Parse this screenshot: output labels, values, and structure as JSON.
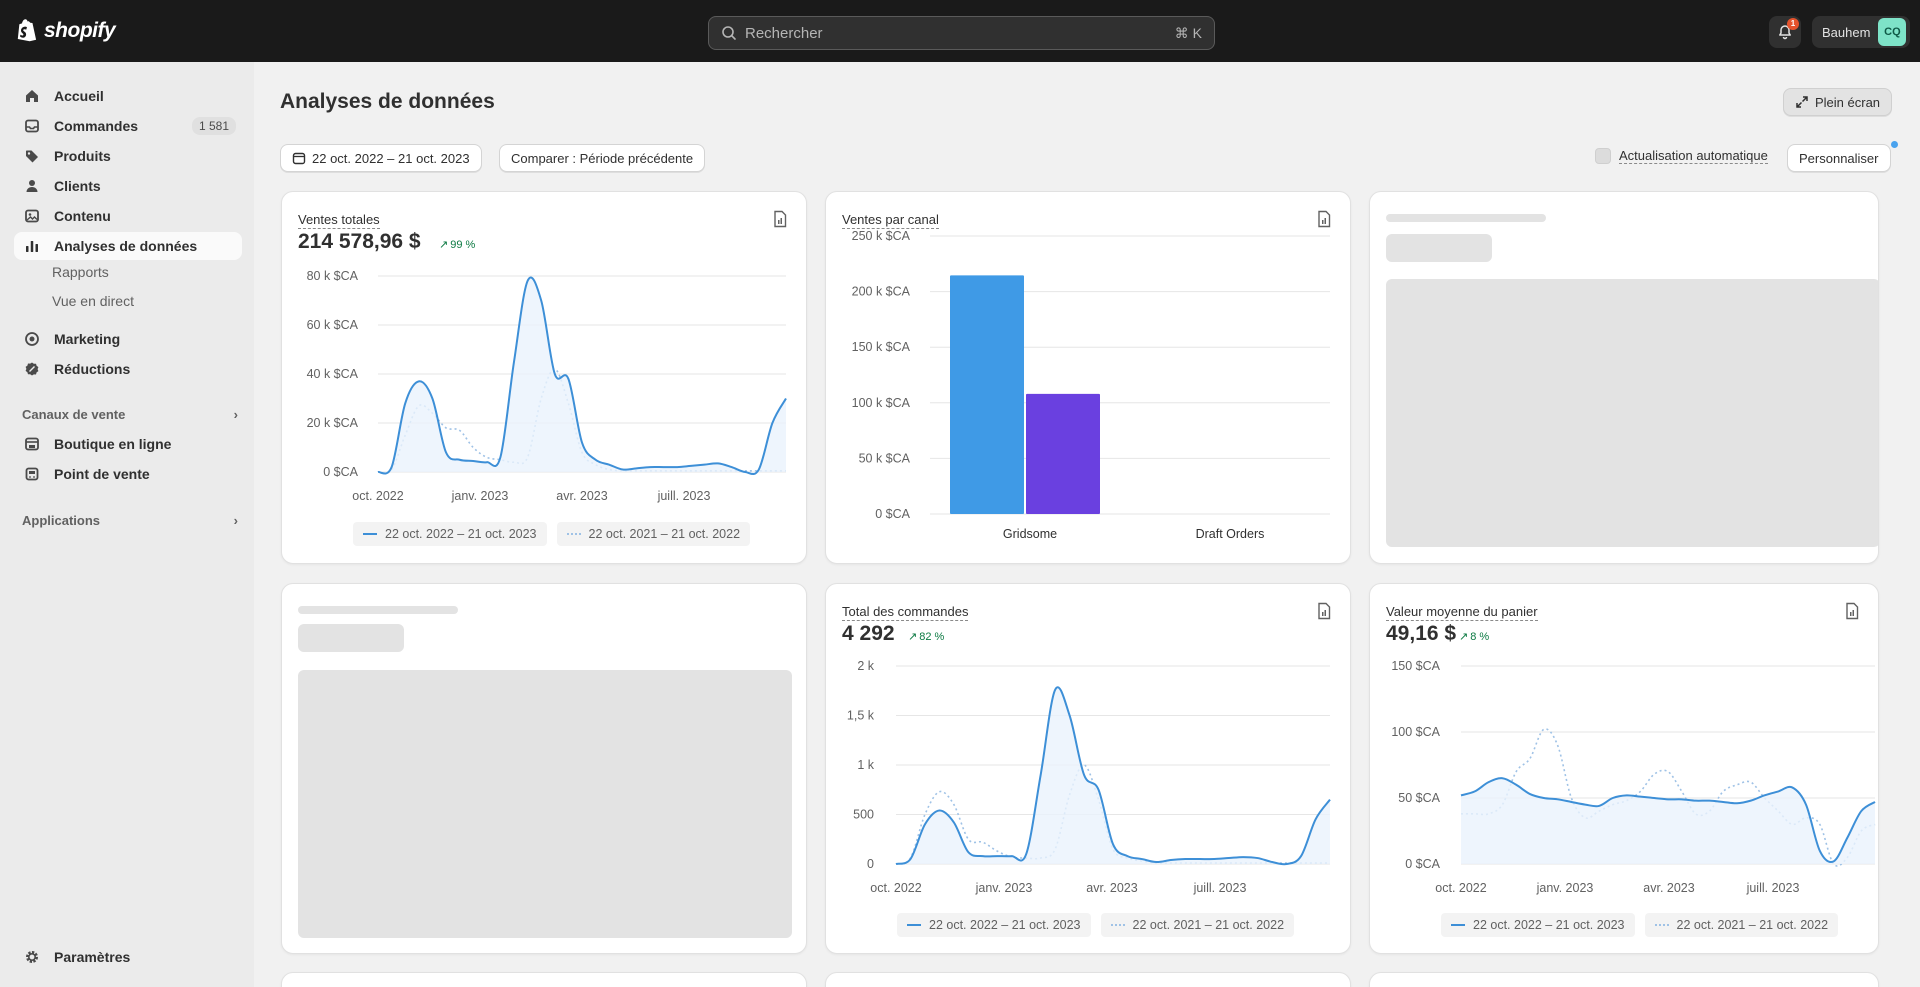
{
  "app": {
    "brand": "shopify"
  },
  "search": {
    "placeholder": "Rechercher",
    "shortcut": "⌘ K"
  },
  "notifications": {
    "count": "1"
  },
  "user": {
    "store_name": "Bauhem",
    "initials": "CQ"
  },
  "sidebar": {
    "items": [
      {
        "label": "Accueil",
        "icon": "home-icon"
      },
      {
        "label": "Commandes",
        "icon": "inbox-icon",
        "count": "1 581"
      },
      {
        "label": "Produits",
        "icon": "tag-icon"
      },
      {
        "label": "Clients",
        "icon": "person-icon"
      },
      {
        "label": "Contenu",
        "icon": "content-icon"
      },
      {
        "label": "Analyses de données",
        "icon": "chart-icon",
        "active": true
      }
    ],
    "subitems": [
      "Rapports",
      "Vue en direct"
    ],
    "items2": [
      {
        "label": "Marketing",
        "icon": "target-icon"
      },
      {
        "label": "Réductions",
        "icon": "discount-icon"
      }
    ],
    "section_sales": "Canaux de vente",
    "channels": [
      {
        "label": "Boutique en ligne",
        "icon": "store-icon"
      },
      {
        "label": "Point de vente",
        "icon": "pos-icon"
      }
    ],
    "section_apps": "Applications",
    "settings": "Paramètres"
  },
  "page": {
    "title": "Analyses de données",
    "fullscreen_label": "Plein écran",
    "date_range": "22 oct. 2022 – 21 oct. 2023",
    "compare_label": "Comparer : Période précédente",
    "auto_refresh_label": "Actualisation automatique",
    "customize_label": "Personnaliser"
  },
  "cards": {
    "total_sales": {
      "title": "Ventes totales",
      "value": "214 578,96 $",
      "trend": "99 %",
      "legend_current": "22 oct. 2022 – 21 oct. 2023",
      "legend_previous": "22 oct. 2021 – 21 oct. 2022"
    },
    "sales_by_channel": {
      "title": "Ventes par canal"
    },
    "total_orders": {
      "title": "Total des commandes",
      "value": "4 292",
      "trend": "82 %",
      "legend_current": "22 oct. 2022 – 21 oct. 2023",
      "legend_previous": "22 oct. 2021 – 21 oct. 2022"
    },
    "avg_cart": {
      "title": "Valeur moyenne du panier",
      "value": "49,16 $",
      "trend": "8 %",
      "legend_current": "22 oct. 2022 – 21 oct. 2023",
      "legend_previous": "22 oct. 2021 – 21 oct. 2022"
    }
  },
  "colors": {
    "current": "#3d8fd7",
    "previous": "#9fc2e6",
    "bar1": "#3f9ae6",
    "bar2": "#6a40e0",
    "trend": "#0c7a43"
  },
  "chart_data": [
    {
      "id": "total_sales",
      "type": "line",
      "ylim": [
        0,
        80000
      ],
      "yticks": [
        0,
        20000,
        40000,
        60000,
        80000
      ],
      "yticklabels": [
        "0 $CA",
        "20 k $CA",
        "40 k $CA",
        "60 k $CA",
        "80 k $CA"
      ],
      "xticklabels": [
        "oct. 2022",
        "janv. 2023",
        "avr. 2023",
        "juill. 2023"
      ],
      "grid": true,
      "series": [
        {
          "name": "22 oct. 2022 – 21 oct. 2023",
          "style": "solid",
          "values": [
            0,
            2000,
            28000,
            37000,
            30000,
            8000,
            5000,
            4500,
            4000,
            6000,
            45000,
            78000,
            70000,
            40000,
            38000,
            12000,
            5000,
            3000,
            1000,
            1500,
            2000,
            2000,
            2000,
            2500,
            3000,
            3500,
            2000,
            0,
            1000,
            20000,
            30000
          ]
        },
        {
          "name": "22 oct. 2021 – 21 oct. 2022",
          "style": "dotted",
          "values": [
            0,
            1000,
            15000,
            27000,
            24000,
            18000,
            17000,
            10000,
            6000,
            5000,
            4000,
            6000,
            30000,
            42000,
            28000,
            8000,
            3000,
            1000,
            500,
            500,
            500,
            500,
            500,
            500,
            500,
            500,
            500,
            500,
            500,
            500,
            500
          ]
        }
      ]
    },
    {
      "id": "sales_by_channel",
      "type": "bar",
      "categories": [
        "Gridsome",
        "Draft Orders"
      ],
      "series": [
        {
          "name": "22 oct. 2022 – 21 oct. 2023",
          "values": [
            214578.96,
            0
          ]
        },
        {
          "name": "22 oct. 2021 – 21 oct. 2022",
          "values": [
            108000,
            0
          ]
        }
      ],
      "ylim": [
        0,
        250000
      ],
      "yticks": [
        0,
        50000,
        100000,
        150000,
        200000,
        250000
      ],
      "yticklabels": [
        "0 $CA",
        "50 k $CA",
        "100 k $CA",
        "150 k $CA",
        "200 k $CA",
        "250 k $CA"
      ],
      "grid": true
    },
    {
      "id": "total_orders",
      "type": "line",
      "ylim": [
        0,
        2000
      ],
      "yticks": [
        0,
        500,
        1000,
        1500,
        2000
      ],
      "yticklabels": [
        "0",
        "500",
        "1 k",
        "1,5 k",
        "2 k"
      ],
      "xticklabels": [
        "oct. 2022",
        "janv. 2023",
        "avr. 2023",
        "juill. 2023"
      ],
      "grid": true,
      "series": [
        {
          "name": "22 oct. 2022 – 21 oct. 2023",
          "style": "solid",
          "values": [
            0,
            50,
            400,
            540,
            420,
            120,
            80,
            80,
            80,
            100,
            900,
            1760,
            1500,
            900,
            750,
            200,
            80,
            50,
            20,
            40,
            50,
            50,
            50,
            60,
            70,
            60,
            20,
            0,
            80,
            450,
            650
          ]
        },
        {
          "name": "22 oct. 2021 – 21 oct. 2022",
          "style": "dotted",
          "values": [
            0,
            60,
            500,
            730,
            600,
            250,
            220,
            130,
            70,
            60,
            60,
            150,
            700,
            1000,
            650,
            150,
            60,
            30,
            10,
            10,
            10,
            10,
            10,
            10,
            10,
            10,
            10,
            10,
            10,
            10,
            10
          ]
        }
      ]
    },
    {
      "id": "avg_cart",
      "type": "line",
      "ylim": [
        0,
        150
      ],
      "yticks": [
        0,
        50,
        100,
        150
      ],
      "yticklabels": [
        "0 $CA",
        "50 $CA",
        "100 $CA",
        "150 $CA"
      ],
      "xticklabels": [
        "oct. 2022",
        "janv. 2023",
        "avr. 2023",
        "juill. 2023"
      ],
      "grid": true,
      "series": [
        {
          "name": "22 oct. 2022 – 21 oct. 2023",
          "style": "solid",
          "values": [
            52,
            55,
            62,
            65,
            60,
            53,
            50,
            49,
            47,
            45,
            44,
            50,
            52,
            51,
            50,
            49,
            49,
            48,
            48,
            47,
            46,
            48,
            52,
            55,
            58,
            45,
            10,
            2,
            20,
            40,
            47
          ]
        },
        {
          "name": "22 oct. 2021 – 21 oct. 2022",
          "style": "dotted",
          "values": [
            38,
            38,
            38,
            45,
            70,
            80,
            102,
            90,
            50,
            35,
            40,
            45,
            48,
            55,
            68,
            70,
            55,
            38,
            40,
            55,
            60,
            62,
            50,
            40,
            30,
            35,
            30,
            0,
            5,
            25,
            30
          ]
        }
      ]
    }
  ]
}
